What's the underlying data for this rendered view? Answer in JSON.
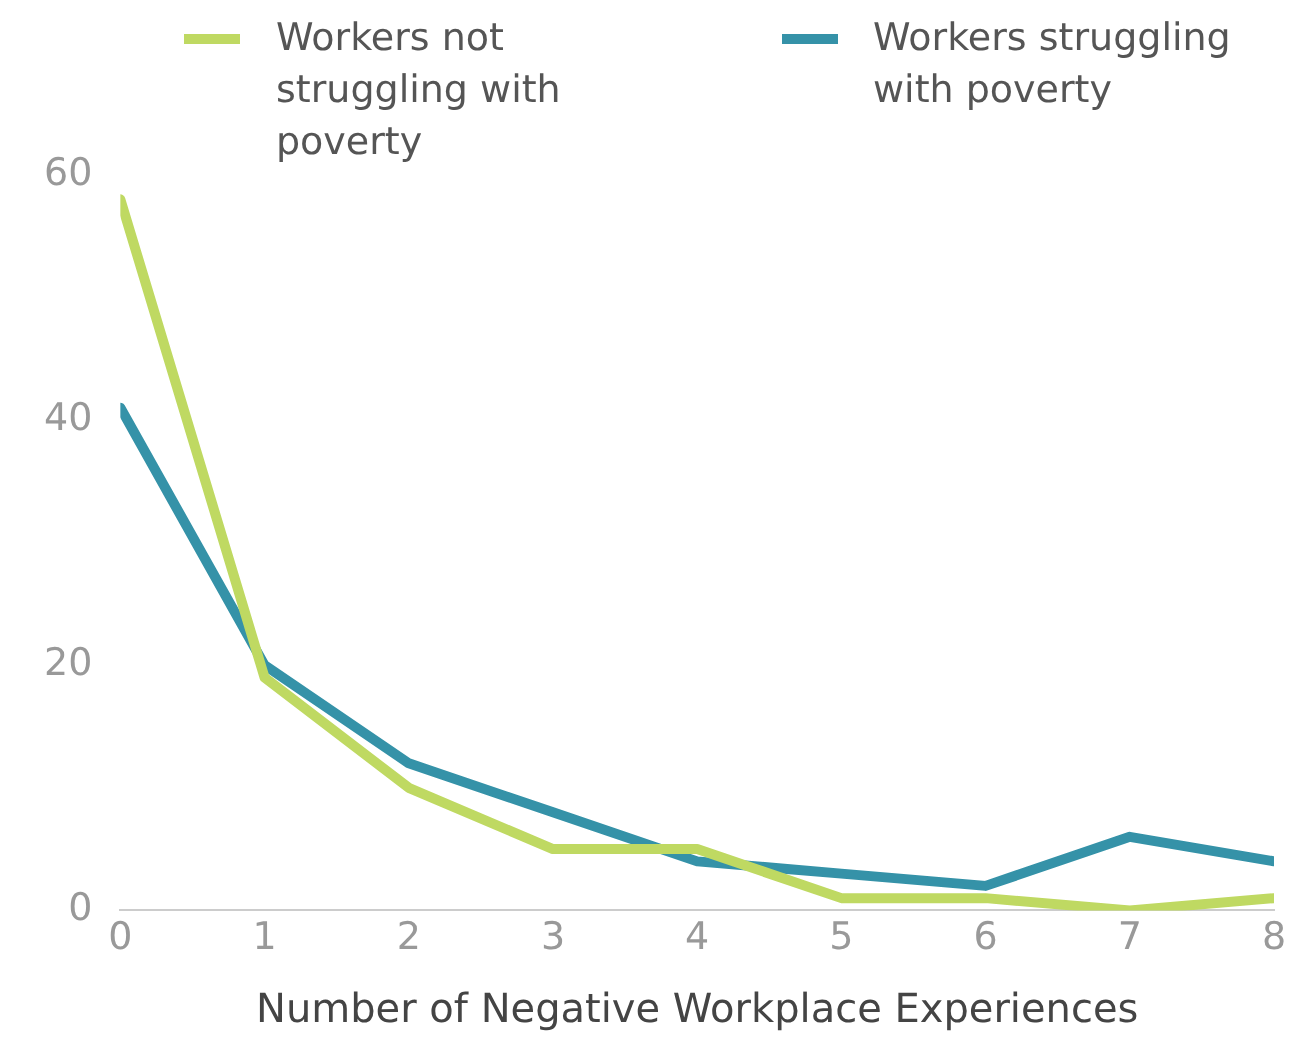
{
  "chart_data": {
    "type": "line",
    "xlabel": "Number of Negative Workplace Experiences",
    "x": [
      0,
      1,
      2,
      3,
      4,
      5,
      6,
      7,
      8
    ],
    "series": [
      {
        "name": "Workers not struggling with poverty",
        "color": "#bfd962",
        "values": [
          58,
          19,
          10,
          5,
          5,
          1,
          1,
          0,
          1
        ]
      },
      {
        "name": "Workers struggling with poverty",
        "color": "#3592a8",
        "values": [
          41,
          20,
          12,
          8,
          4,
          3,
          2,
          6,
          4
        ]
      }
    ],
    "xlim": [
      0,
      8
    ],
    "xticks": [
      0,
      1,
      2,
      3,
      4,
      5,
      6,
      7,
      8
    ],
    "ylim": [
      0,
      60
    ],
    "yticks": [
      0,
      20,
      40,
      60
    ],
    "grid": false,
    "legend": "top",
    "marker": "none",
    "line_style": "solid"
  }
}
